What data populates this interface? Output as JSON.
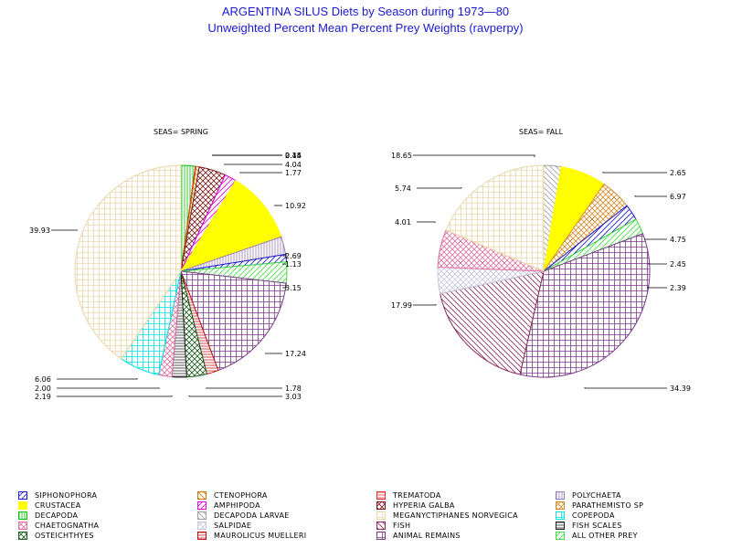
{
  "title": "ARGENTINA SILUS Diets by Season during 1973—80",
  "subtitle": "Unweighted Percent Mean Percent Prey  Weights (ravperpy)",
  "categories": [
    {
      "name": "SIPHONOPHORA",
      "color": "#1a1acc"
    },
    {
      "name": "CTENOPHORA",
      "color": "#c87800"
    },
    {
      "name": "TREMATODA",
      "color": "#e03030"
    },
    {
      "name": "POLYCHAETA",
      "color": "#9a7ab0"
    },
    {
      "name": "CRUSTACEA",
      "color": "#ffff00"
    },
    {
      "name": "AMPHIPODA",
      "color": "#e000e0"
    },
    {
      "name": "HYPERIA GALBA",
      "color": "#7a1a1a"
    },
    {
      "name": "PARATHEMISTO SP",
      "color": "#d88a2a"
    },
    {
      "name": "DECAPODA",
      "color": "#00c000"
    },
    {
      "name": "DECAPODA LARVAE",
      "color": "#a0a0a0"
    },
    {
      "name": "MEGANYCTIPHANES NORVEGICA",
      "color": "#ead7a8"
    },
    {
      "name": "COPEPODA",
      "color": "#00e0e0"
    },
    {
      "name": "CHAETOGNATHA",
      "color": "#e070a0"
    },
    {
      "name": "SALPIDAE",
      "color": "#c8c8e0"
    },
    {
      "name": "FISH",
      "color": "#8a2a5a"
    },
    {
      "name": "FISH SCALES",
      "color": "#202020"
    },
    {
      "name": "OSTEICHTHYES",
      "color": "#1a5a1a"
    },
    {
      "name": "MAUROLICUS MUELLERI",
      "color": "#c01010"
    },
    {
      "name": "ANIMAL REMAINS",
      "color": "#7a3a8a"
    },
    {
      "name": "ALL OTHER PREY",
      "color": "#40e040"
    }
  ],
  "chart_data": [
    {
      "type": "pie",
      "title": "SEAS= SPRING",
      "slices": [
        {
          "category": "DECAPODA",
          "value": 2.14
        },
        {
          "category": "TREMATODA",
          "value": 0.15
        },
        {
          "category": "CTENOPHORA",
          "value": 0.44
        },
        {
          "category": "HYPERIA GALBA",
          "value": 4.04
        },
        {
          "category": "AMPHIPODA",
          "value": 1.77
        },
        {
          "category": "CRUSTACEA",
          "value": 10.92
        },
        {
          "category": "POLYCHAETA",
          "value": 2.69
        },
        {
          "category": "SIPHONOPHORA",
          "value": 1.13
        },
        {
          "category": "ALL OTHER PREY",
          "value": 3.15
        },
        {
          "category": "ANIMAL REMAINS",
          "value": 17.24
        },
        {
          "category": "MAUROLICUS MUELLERI",
          "value": 1.78
        },
        {
          "category": "OSTEICHTHYES",
          "value": 3.03
        },
        {
          "category": "FISH SCALES",
          "value": 2.19
        },
        {
          "category": "CHAETOGNATHA",
          "value": 2.0
        },
        {
          "category": "COPEPODA",
          "value": 6.06
        },
        {
          "category": "MEGANYCTIPHANES NORVEGICA",
          "value": 39.93
        }
      ],
      "labels": [
        {
          "text": "2.14"
        },
        {
          "text": "0.15"
        },
        {
          "text": "0.44"
        },
        {
          "text": "4.04"
        },
        {
          "text": "1.77"
        },
        {
          "text": "10.92"
        },
        {
          "text": "2.69"
        },
        {
          "text": "1.13"
        },
        {
          "text": "3.15"
        },
        {
          "text": "17.24"
        },
        {
          "text": "1.78"
        },
        {
          "text": "3.03"
        },
        {
          "text": "2.19"
        },
        {
          "text": "2.00"
        },
        {
          "text": "6.06"
        },
        {
          "text": "39.93"
        }
      ]
    },
    {
      "type": "pie",
      "title": "SEAS= FALL",
      "slices": [
        {
          "category": "DECAPODA LARVAE",
          "value": 2.65
        },
        {
          "category": "CRUSTACEA",
          "value": 6.97
        },
        {
          "category": "PARATHEMISTO SP",
          "value": 4.75
        },
        {
          "category": "SIPHONOPHORA",
          "value": 2.45
        },
        {
          "category": "ALL OTHER PREY",
          "value": 2.39
        },
        {
          "category": "ANIMAL REMAINS",
          "value": 34.39
        },
        {
          "category": "FISH",
          "value": 17.99
        },
        {
          "category": "SALPIDAE",
          "value": 4.01
        },
        {
          "category": "CHAETOGNATHA",
          "value": 5.74
        },
        {
          "category": "MEGANYCTIPHANES NORVEGICA",
          "value": 18.65
        }
      ],
      "labels": [
        {
          "text": "2.65"
        },
        {
          "text": "6.97"
        },
        {
          "text": "4.75"
        },
        {
          "text": "2.45"
        },
        {
          "text": "2.39"
        },
        {
          "text": "34.39"
        },
        {
          "text": "17.99"
        },
        {
          "text": "4.01"
        },
        {
          "text": "5.74"
        },
        {
          "text": "18.65"
        }
      ]
    }
  ]
}
